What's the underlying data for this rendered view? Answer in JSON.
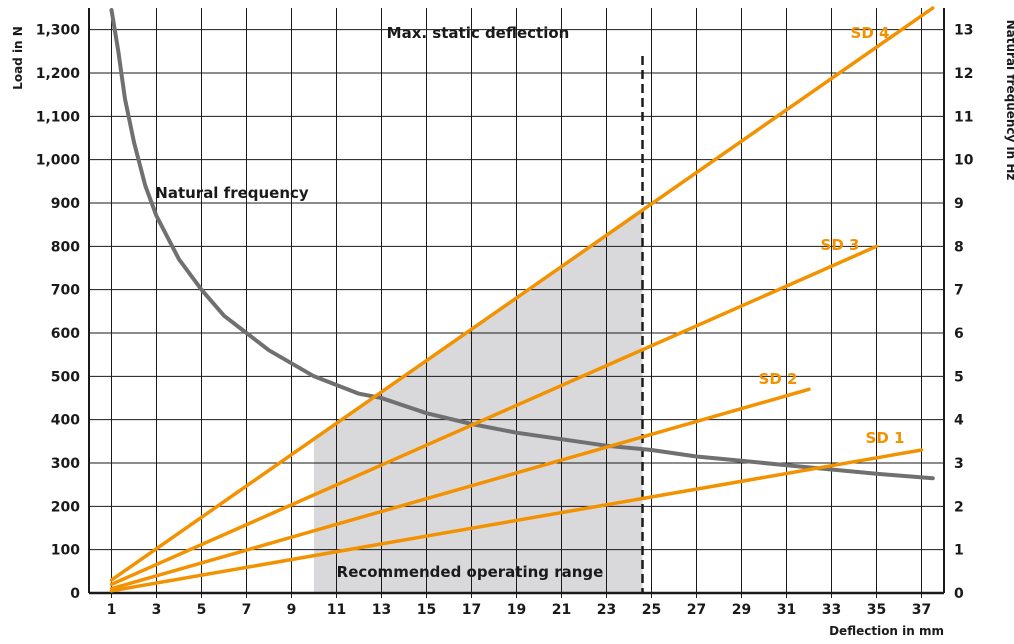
{
  "chart_data": {
    "type": "line",
    "title": "",
    "xlabel": "Deflection in mm",
    "ylabel": "Load in N",
    "y2label": "Natural frequency in Hz",
    "xlim": [
      0,
      38
    ],
    "ylim": [
      0,
      1350
    ],
    "y2lim": [
      0,
      13.5
    ],
    "x_ticks": [
      1,
      3,
      5,
      7,
      9,
      11,
      13,
      15,
      17,
      19,
      21,
      23,
      25,
      27,
      29,
      31,
      33,
      35,
      37
    ],
    "y_ticks": [
      0,
      100,
      200,
      300,
      400,
      500,
      600,
      700,
      800,
      900,
      1000,
      1100,
      1200,
      1300
    ],
    "y_tick_labels": [
      "0",
      "100",
      "200",
      "300",
      "400",
      "500",
      "600",
      "700",
      "800",
      "900",
      "1,000",
      "1,100",
      "1,200",
      "1,300"
    ],
    "y2_ticks": [
      0,
      1,
      2,
      3,
      4,
      5,
      6,
      7,
      8,
      9,
      10,
      11,
      12,
      13
    ],
    "grid": true,
    "colors": {
      "load_lines": "#f39200",
      "frequency_curve": "#707070",
      "range_fill": "#d9d9dc",
      "grid": "#1a1a1a"
    },
    "series": [
      {
        "name": "SD 4",
        "axis": "left",
        "x": [
          1,
          37.5
        ],
        "y": [
          30,
          1350
        ]
      },
      {
        "name": "SD 3",
        "axis": "left",
        "x": [
          1,
          35
        ],
        "y": [
          20,
          800
        ]
      },
      {
        "name": "SD 2",
        "axis": "left",
        "x": [
          1,
          32
        ],
        "y": [
          10,
          470
        ]
      },
      {
        "name": "SD 1",
        "axis": "left",
        "x": [
          1,
          37
        ],
        "y": [
          5,
          330
        ]
      },
      {
        "name": "Natural frequency",
        "axis": "right",
        "x": [
          1,
          1.3,
          1.6,
          2,
          2.5,
          3,
          4,
          5,
          6,
          7,
          8,
          9,
          10,
          11,
          12,
          13,
          15,
          17,
          19,
          21,
          23,
          25,
          27,
          29,
          31,
          33,
          35,
          37.5
        ],
        "y": [
          14.1,
          12.5,
          11.4,
          10.4,
          9.4,
          8.7,
          7.7,
          7.0,
          6.4,
          6.0,
          5.6,
          5.3,
          5.0,
          4.8,
          4.6,
          4.5,
          4.15,
          3.9,
          3.7,
          3.55,
          3.4,
          3.3,
          3.15,
          3.05,
          2.95,
          2.85,
          2.75,
          2.65
        ]
      }
    ],
    "shaded_region": {
      "label": "Recommended operating range",
      "x_from": 10,
      "x_to": 24.6
    },
    "reference_line": {
      "label": "Max. static deflection",
      "x": 24.6
    },
    "annotations": [
      "Natural frequency",
      "Max. static deflection",
      "Recommended operating range"
    ]
  }
}
